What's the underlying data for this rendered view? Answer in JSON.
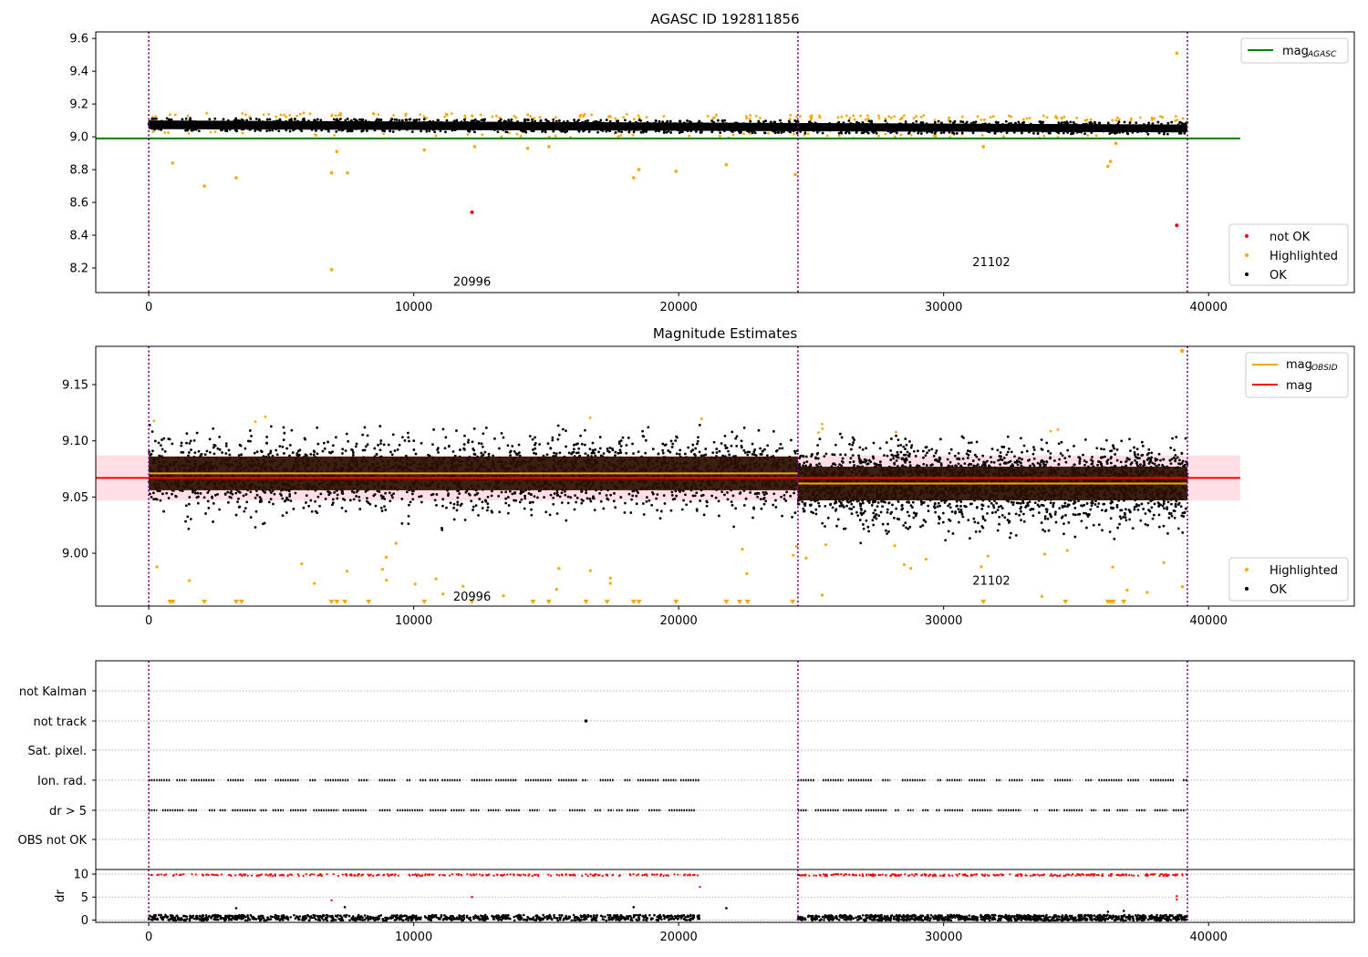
{
  "chart_data": [
    {
      "type": "scatter",
      "title": "AGASC ID 192811856",
      "xlim": [
        -2000,
        45500
      ],
      "ylim": [
        8.05,
        9.64
      ],
      "xticks": [
        0,
        10000,
        20000,
        30000,
        40000
      ],
      "yticks": [
        8.2,
        8.4,
        8.6,
        8.8,
        9.0,
        9.2,
        9.4,
        9.6
      ],
      "obsid_boundaries": [
        0,
        24500,
        39200
      ],
      "obsid_labels": [
        {
          "text": "20996",
          "x": 12200,
          "y": 8.12
        },
        {
          "text": "21102",
          "x": 31800,
          "y": 8.24
        }
      ],
      "ok_band": {
        "x_start": 0,
        "x_end": 39200,
        "y_upper_start": 9.115,
        "y_upper_end": 9.09,
        "y_lower_start": 9.035,
        "y_lower_end": 9.015
      },
      "highlighted_points": [
        [
          900,
          8.84
        ],
        [
          2100,
          8.7
        ],
        [
          3300,
          8.75
        ],
        [
          6900,
          8.78
        ],
        [
          7100,
          8.91
        ],
        [
          7500,
          8.78
        ],
        [
          6900,
          8.19
        ],
        [
          10400,
          8.92
        ],
        [
          18300,
          8.75
        ],
        [
          18500,
          8.8
        ],
        [
          19900,
          8.79
        ],
        [
          21800,
          8.83
        ],
        [
          24400,
          8.77
        ],
        [
          36200,
          8.82
        ],
        [
          36300,
          8.85
        ],
        [
          36500,
          8.96
        ],
        [
          38800,
          9.51
        ],
        [
          12300,
          8.94
        ],
        [
          15100,
          8.94
        ],
        [
          14300,
          8.93
        ],
        [
          31500,
          8.94
        ]
      ],
      "not_ok_points": [
        [
          12200,
          8.54
        ],
        [
          38800,
          8.46
        ]
      ],
      "lines": [
        {
          "name": "mag$_{AGASC}$",
          "label_main": "mag",
          "label_sub": "AGASC",
          "color": "#008000",
          "y": 8.99,
          "x_start": -2000,
          "x_end": 41200
        }
      ],
      "legend_lines_position": "top-right",
      "legend_points": [
        {
          "label": "not OK",
          "color": "#ff0000"
        },
        {
          "label": "Highlighted",
          "color": "#ffa500"
        },
        {
          "label": "OK",
          "color": "#000000"
        }
      ],
      "legend_points_position": "lower-right"
    },
    {
      "type": "scatter",
      "title": "Magnitude Estimates",
      "xlim": [
        -2000,
        45500
      ],
      "ylim": [
        8.953,
        9.184
      ],
      "xticks": [
        0,
        10000,
        20000,
        30000,
        40000
      ],
      "yticks": [
        9.0,
        9.05,
        9.1,
        9.15
      ],
      "ytick_labels": [
        "9.00",
        "9.05",
        "9.10",
        "9.15"
      ],
      "obsid_boundaries": [
        0,
        24500,
        39200
      ],
      "obsid_labels": [
        {
          "text": "20996",
          "x": 12200,
          "y": 8.962
        },
        {
          "text": "21102",
          "x": 31800,
          "y": 8.976
        }
      ],
      "mag_band": {
        "y_low": 9.047,
        "y_high": 9.087,
        "x_start": -2000,
        "x_end": 41200
      },
      "lines": [
        {
          "name": "mag$_{OBSID}$",
          "label_main": "mag",
          "label_sub": "OBSID",
          "color": "#ffa500",
          "segments": [
            [
              0,
              24500,
              9.071
            ],
            [
              24500,
              39200,
              9.062
            ]
          ]
        },
        {
          "name": "mag",
          "label_main": "mag",
          "label_sub": "",
          "color": "#ff0000",
          "y": 9.067,
          "x_start": -2000,
          "x_end": 41200
        }
      ],
      "legend_lines_position": "top-right",
      "legend_points": [
        {
          "label": "Highlighted",
          "color": "#ffa500"
        },
        {
          "label": "OK",
          "color": "#000000"
        }
      ],
      "legend_points_position": "lower-right",
      "low_markers_x": [
        800,
        900,
        2100,
        3300,
        3500,
        6900,
        7100,
        7400,
        8300,
        10400,
        12200,
        14500,
        15100,
        16500,
        17300,
        18300,
        18500,
        19900,
        21800,
        22300,
        22600,
        24300,
        31500,
        34600,
        36200,
        36300,
        36400,
        36800
      ]
    },
    {
      "type": "scatter",
      "title": "",
      "xlim": [
        -2000,
        45500
      ],
      "xticks": [
        0,
        10000,
        20000,
        30000,
        40000
      ],
      "flag_categories": [
        "not Kalman",
        "not track",
        "Sat. pixel.",
        "Ion. rad.",
        "dr > 5",
        "OBS not OK"
      ],
      "flag_points": {
        "not track": [
          16500
        ],
        "Ion. rad.": "dense dashes over 0-20800 and 24500-39200",
        "dr > 5": "dense dashes over 0-20800 and 24500-39200"
      },
      "obsid_boundaries": [
        0,
        24500,
        39200
      ]
    },
    {
      "type": "scatter",
      "title": "",
      "ylabel": "dr",
      "xlim": [
        -2000,
        45500
      ],
      "ylim": [
        -0.5,
        11
      ],
      "xticks": [
        0,
        10000,
        20000,
        30000,
        40000
      ],
      "yticks": [
        0,
        5,
        10
      ],
      "obsid_boundaries": [
        0,
        24500,
        39200
      ],
      "red_points_y": 9.8,
      "black_points_y": 0.5
    }
  ]
}
